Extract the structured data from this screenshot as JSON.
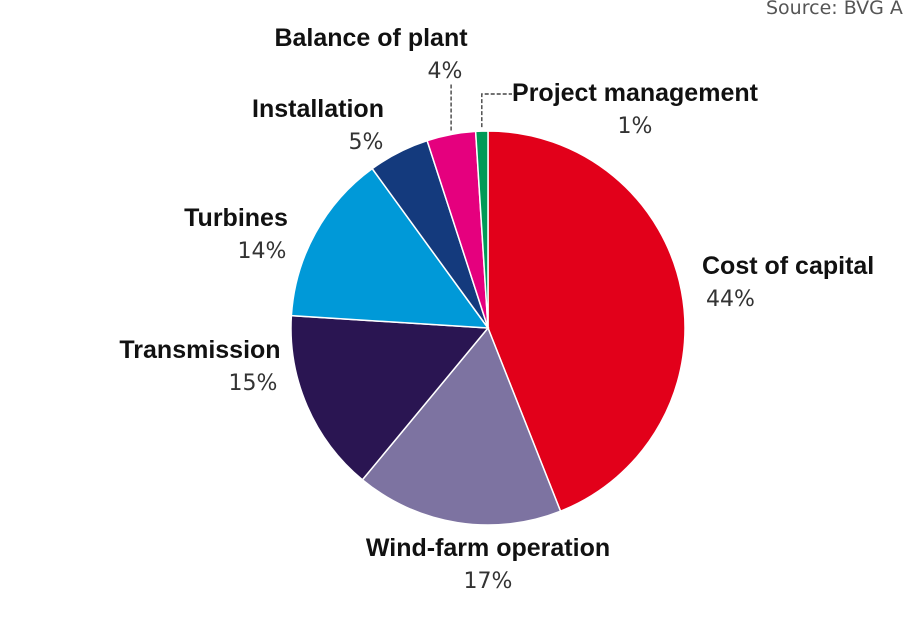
{
  "source_text": "Source: BVG A",
  "chart_data": {
    "type": "pie",
    "start_angle_deg": 90,
    "direction": "clockwise",
    "slices": [
      {
        "label": "Cost of capital",
        "value": 44,
        "value_label": "44%",
        "color": "#e2001a"
      },
      {
        "label": "Wind-farm operation",
        "value": 17,
        "value_label": "17%",
        "color": "#7d73a1"
      },
      {
        "label": "Transmission",
        "value": 15,
        "value_label": "15%",
        "color": "#2a1552"
      },
      {
        "label": "Turbines",
        "value": 14,
        "value_label": "14%",
        "color": "#0099d8"
      },
      {
        "label": "Installation",
        "value": 5,
        "value_label": "5%",
        "color": "#143a7d"
      },
      {
        "label": "Balance of plant",
        "value": 4,
        "value_label": "4%",
        "color": "#e5007e"
      },
      {
        "label": "Project management",
        "value": 1,
        "value_label": "1%",
        "color": "#009a57"
      }
    ]
  }
}
